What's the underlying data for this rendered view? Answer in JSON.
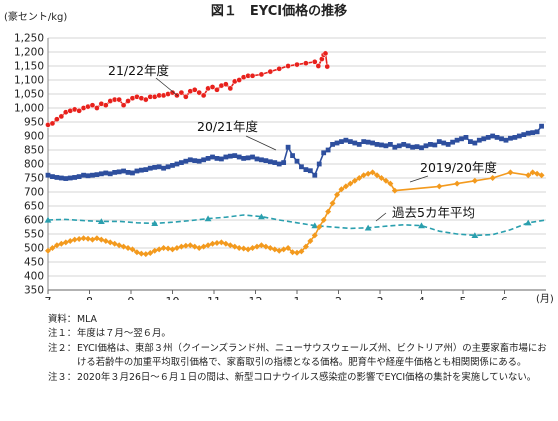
{
  "figure": {
    "title": "図１　EYCI価格の推移",
    "y_unit": "(豪セント/kg)",
    "x_unit": "(月)"
  },
  "chart_data": {
    "type": "line",
    "title": "図１　EYCI価格の推移",
    "ylabel": "(豪セント/kg)",
    "xlabel": "(月)",
    "ylim": [
      350,
      1250
    ],
    "y_ticks": [
      350,
      400,
      450,
      500,
      550,
      600,
      650,
      700,
      750,
      800,
      850,
      900,
      950,
      1000,
      1050,
      1100,
      1150,
      1200,
      1250
    ],
    "x_ticks": [
      "7",
      "8",
      "9",
      "10",
      "11",
      "12",
      "1",
      "2",
      "3",
      "4",
      "5",
      "6"
    ],
    "grid": true,
    "colors": {
      "series_21_22": "#e8211c",
      "series_20_21": "#2e4f9e",
      "series_2019_20": "#f39a1e",
      "series_avg5": "#2a9fae",
      "grid": "#c9c9c9"
    },
    "series": [
      {
        "name": "21/22年度",
        "style": "line-circle",
        "x": [
          0.0,
          0.25,
          0.5,
          0.75,
          1.0,
          1.25,
          1.5,
          1.75,
          2.0,
          2.25,
          2.5,
          2.75,
          3.0,
          3.25,
          3.5,
          3.75,
          4.0,
          4.25,
          4.5,
          4.75,
          5.0,
          5.25,
          5.5,
          5.75,
          6.0,
          6.25,
          6.5,
          6.75,
          7.0,
          7.25,
          7.5,
          7.75,
          8.0,
          8.25,
          8.5,
          8.75,
          9.0,
          9.25,
          9.5,
          9.75,
          10.0,
          10.25,
          10.5,
          10.75,
          11.0,
          11.25,
          11.5,
          12.0,
          12.5,
          13.0,
          13.5,
          14.0,
          14.5,
          15.0,
          15.2,
          15.4,
          15.5,
          15.6,
          15.7
        ],
        "y": [
          940,
          945,
          960,
          970,
          985,
          990,
          995,
          990,
          1000,
          1005,
          1010,
          1000,
          1015,
          1010,
          1025,
          1030,
          1030,
          1010,
          1025,
          1035,
          1040,
          1035,
          1030,
          1040,
          1040,
          1045,
          1045,
          1050,
          1055,
          1045,
          1055,
          1040,
          1060,
          1065,
          1055,
          1045,
          1070,
          1075,
          1065,
          1080,
          1085,
          1070,
          1095,
          1100,
          1110,
          1115,
          1115,
          1120,
          1130,
          1140,
          1150,
          1155,
          1160,
          1165,
          1150,
          1175,
          1190,
          1195,
          1148
        ]
      },
      {
        "name": "20/21年度",
        "style": "line-square",
        "x": [
          0.0,
          0.25,
          0.5,
          0.75,
          1.0,
          1.25,
          1.5,
          1.75,
          2.0,
          2.25,
          2.5,
          2.75,
          3.0,
          3.25,
          3.5,
          3.75,
          4.0,
          4.25,
          4.5,
          4.75,
          5.0,
          5.25,
          5.5,
          5.75,
          6.0,
          6.25,
          6.5,
          6.75,
          7.0,
          7.25,
          7.5,
          7.75,
          8.0,
          8.25,
          8.5,
          8.75,
          9.0,
          9.25,
          9.5,
          9.75,
          10.0,
          10.25,
          10.5,
          10.75,
          11.0,
          11.25,
          11.5,
          11.75,
          12.0,
          12.25,
          12.5,
          12.75,
          13.0,
          13.25,
          13.5,
          13.75,
          14.0,
          14.25,
          14.5,
          14.75,
          15.0,
          15.25,
          15.5,
          15.75,
          16.0,
          16.25,
          16.5,
          16.75,
          17.0,
          17.25,
          17.5,
          17.75,
          18.0,
          18.25,
          18.5,
          18.75,
          19.0,
          19.25,
          19.5,
          19.75,
          20.0,
          20.25,
          20.5,
          20.75,
          21.0,
          21.25,
          21.5,
          21.75,
          22.0,
          22.25,
          22.5,
          22.75,
          23.0,
          23.25,
          23.5,
          23.75,
          24.0,
          24.25,
          24.5,
          24.75,
          25.0,
          25.25,
          25.5,
          25.75,
          26.0,
          26.25,
          26.5,
          26.75,
          27.0,
          27.25,
          27.5,
          27.75
        ],
        "y": [
          760,
          755,
          752,
          750,
          748,
          750,
          752,
          755,
          760,
          758,
          760,
          762,
          765,
          768,
          765,
          770,
          772,
          775,
          770,
          768,
          775,
          778,
          780,
          785,
          788,
          790,
          785,
          790,
          795,
          800,
          805,
          810,
          815,
          812,
          810,
          815,
          820,
          825,
          820,
          818,
          825,
          828,
          830,
          825,
          820,
          822,
          825,
          818,
          815,
          812,
          808,
          805,
          800,
          805,
          860,
          830,
          810,
          790,
          780,
          776,
          760,
          800,
          840,
          850,
          870,
          875,
          880,
          885,
          880,
          875,
          870,
          880,
          878,
          875,
          870,
          868,
          865,
          870,
          860,
          865,
          870,
          865,
          860,
          862,
          858,
          865,
          870,
          868,
          880,
          875,
          870,
          878,
          885,
          890,
          895,
          880,
          875,
          885,
          890,
          895,
          900,
          895,
          890,
          885,
          892,
          895,
          900,
          905,
          910,
          912,
          915,
          935
        ]
      },
      {
        "name": "2019/20年度",
        "style": "line-diamond",
        "x": [
          0.0,
          0.25,
          0.5,
          0.75,
          1.0,
          1.25,
          1.5,
          1.75,
          2.0,
          2.25,
          2.5,
          2.75,
          3.0,
          3.25,
          3.5,
          3.75,
          4.0,
          4.25,
          4.5,
          4.75,
          5.0,
          5.25,
          5.5,
          5.75,
          6.0,
          6.25,
          6.5,
          6.75,
          7.0,
          7.25,
          7.5,
          7.75,
          8.0,
          8.25,
          8.5,
          8.75,
          9.0,
          9.25,
          9.5,
          9.75,
          10.0,
          10.25,
          10.5,
          10.75,
          11.0,
          11.25,
          11.5,
          11.75,
          12.0,
          12.25,
          12.5,
          12.75,
          13.0,
          13.25,
          13.5,
          13.75,
          14.0,
          14.25,
          14.5,
          14.75,
          15.0,
          15.25,
          15.5,
          15.75,
          16.0,
          16.25,
          16.5,
          16.75,
          17.0,
          17.25,
          17.5,
          17.75,
          18.0,
          18.25,
          18.5,
          18.75,
          19.0,
          19.25,
          19.5,
          22.0,
          23.0,
          24.0,
          25.0,
          26.0,
          27.0,
          27.25,
          27.5,
          27.75
        ],
        "y": [
          490,
          500,
          510,
          515,
          520,
          525,
          530,
          532,
          535,
          533,
          530,
          535,
          530,
          525,
          520,
          515,
          510,
          505,
          500,
          495,
          485,
          480,
          478,
          482,
          490,
          495,
          500,
          498,
          495,
          500,
          505,
          508,
          510,
          505,
          500,
          505,
          510,
          515,
          518,
          520,
          515,
          510,
          505,
          500,
          498,
          495,
          500,
          505,
          510,
          505,
          500,
          495,
          490,
          495,
          500,
          485,
          483,
          488,
          505,
          525,
          545,
          575,
          600,
          630,
          660,
          690,
          710,
          720,
          730,
          740,
          750,
          760,
          765,
          770,
          760,
          750,
          740,
          730,
          705,
          720,
          730,
          740,
          750,
          770,
          760,
          770,
          765,
          760
        ]
      },
      {
        "name": "過去5カ年平均",
        "style": "dashed-triangle",
        "x": [
          0,
          1,
          2,
          3,
          4,
          5,
          6,
          7,
          8,
          9,
          10,
          11,
          12,
          13,
          14,
          15,
          16,
          17,
          18,
          19,
          20,
          21,
          22,
          23,
          24,
          25,
          26,
          27,
          28
        ],
        "y": [
          600,
          602,
          598,
          595,
          595,
          590,
          588,
          592,
          598,
          605,
          610,
          618,
          612,
          600,
          590,
          580,
          575,
          570,
          572,
          578,
          583,
          580,
          560,
          550,
          545,
          548,
          565,
          590,
          600
        ]
      }
    ],
    "annotations": [
      {
        "text": "21/22年度",
        "series": "21/22年度"
      },
      {
        "text": "20/21年度",
        "series": "20/21年度"
      },
      {
        "text": "2019/20年度",
        "series": "2019/20年度"
      },
      {
        "text": "過去5カ年平均",
        "series": "過去5カ年平均"
      }
    ]
  },
  "notes": [
    {
      "label": "資料：",
      "text": "MLA"
    },
    {
      "label": "注１：",
      "text": "年度は７月～翌６月。"
    },
    {
      "label": "注２：",
      "text": "EYCI価格は、東部３州（クイーンズランド州、ニューサウスウェールズ州、ビクトリア州）の主要家畜市場における若齢牛の加重平均取引価格で、家畜取引の指標となる価格。肥育牛や経産牛価格とも相関関係にある。"
    },
    {
      "label": "注３：",
      "text": "2020年３月26日～６月１日の間は、新型コロナウイルス感染症の影響でEYCI価格の集計を実施していない。"
    }
  ]
}
